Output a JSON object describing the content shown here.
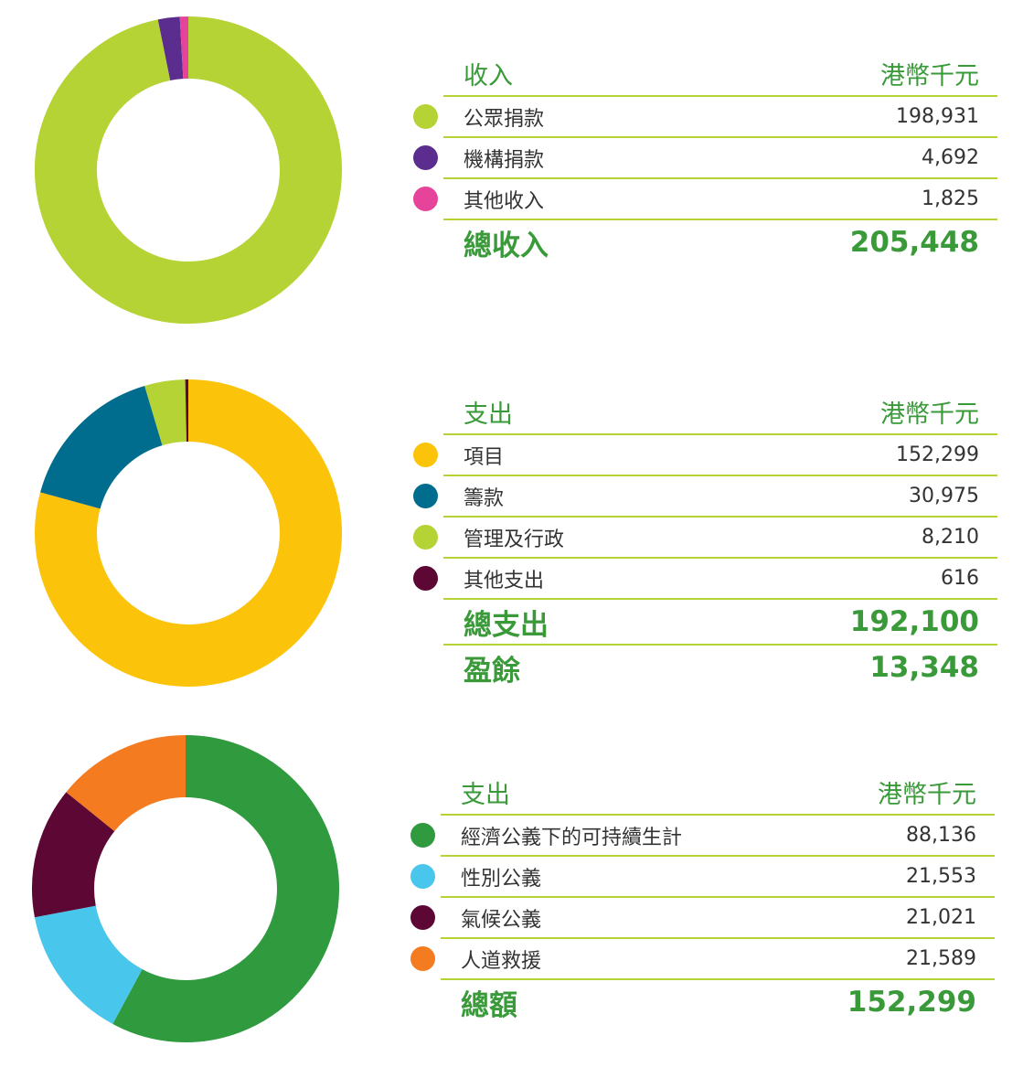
{
  "chart_data": [
    {
      "type": "pie",
      "header_label": "收入",
      "unit": "港幣千元",
      "categories": [
        "公眾捐款",
        "機構捐款",
        "其他收入"
      ],
      "values": [
        198931,
        4692,
        1825
      ],
      "display_values": [
        "198,931",
        "4,692",
        "1,825"
      ],
      "colors": [
        "#b5d334",
        "#5b2d8e",
        "#e6449a"
      ],
      "totals": [
        {
          "label": "總收入",
          "value": "205,448"
        }
      ]
    },
    {
      "type": "pie",
      "header_label": "支出",
      "unit": "港幣千元",
      "categories": [
        "項目",
        "籌款",
        "管理及行政",
        "其他支出"
      ],
      "values": [
        152299,
        30975,
        8210,
        616
      ],
      "display_values": [
        "152,299",
        "30,975",
        "8,210",
        "616"
      ],
      "colors": [
        "#fcc30b",
        "#006d8e",
        "#b5d334",
        "#5c0734"
      ],
      "totals": [
        {
          "label": "總支出",
          "value": "192,100"
        },
        {
          "label": "盈餘",
          "value": "13,348"
        }
      ]
    },
    {
      "type": "pie",
      "header_label": "支出",
      "unit": "港幣千元",
      "categories": [
        "經濟公義下的可持續生計",
        "性別公義",
        "氣候公義",
        "人道救援"
      ],
      "values": [
        88136,
        21553,
        21021,
        21589
      ],
      "display_values": [
        "88,136",
        "21,553",
        "21,021",
        "21,589"
      ],
      "colors": [
        "#2f9a3e",
        "#48c6ec",
        "#5c0734",
        "#f47b20"
      ],
      "totals": [
        {
          "label": "總額",
          "value": "152,299"
        }
      ]
    }
  ]
}
